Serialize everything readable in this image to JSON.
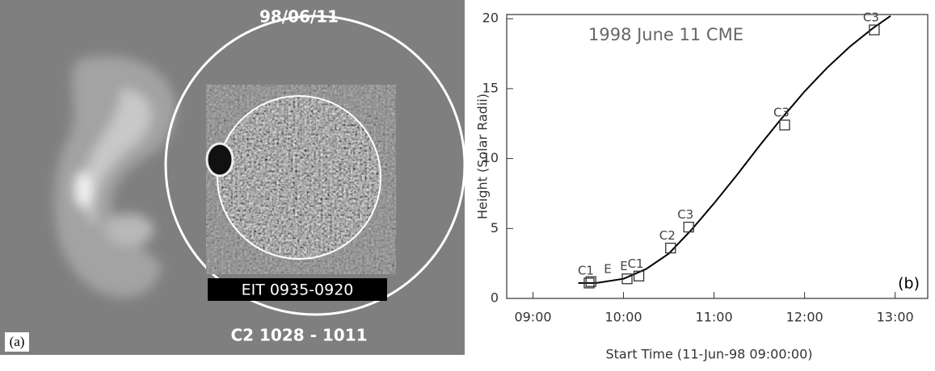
{
  "panel_a": {
    "date": "98/06/11",
    "eit_label": "EIT 0935-0920",
    "c2_label": "C2 1028 - 1011",
    "panel_label": "(a)"
  },
  "chart_data": {
    "type": "scatter",
    "title": "1998 June 11 CME",
    "panel_label": "(b)",
    "x_label": "Start Time (11-Jun-98 09:00:00)",
    "y_label": "Height (Solar Radii)",
    "xlim": [
      8.71,
      13.36
    ],
    "ylim": [
      0,
      20.3
    ],
    "xticks": [
      {
        "value": 9,
        "label": "09:00"
      },
      {
        "value": 10,
        "label": "10:00"
      },
      {
        "value": 11,
        "label": "11:00"
      },
      {
        "value": 12,
        "label": "12:00"
      },
      {
        "value": 13,
        "label": "13:00"
      }
    ],
    "yticks": [
      0,
      5,
      10,
      15,
      20
    ],
    "points": {
      "labels": [
        "C1",
        "E",
        "E",
        "C1",
        "C2",
        "C3",
        "C3",
        "C3"
      ],
      "x": [
        9.62,
        9.64,
        10.04,
        10.17,
        10.52,
        10.72,
        11.78,
        12.77
      ],
      "values": [
        1.1,
        1.2,
        1.4,
        1.6,
        3.6,
        5.1,
        12.4,
        19.2
      ],
      "color": "#333333"
    },
    "curve": {
      "x": [
        9.5,
        9.7,
        10.0,
        10.25,
        10.5,
        10.75,
        11.0,
        11.25,
        11.5,
        11.75,
        12.0,
        12.25,
        12.5,
        12.75,
        12.95
      ],
      "values": [
        1.1,
        1.1,
        1.4,
        2.1,
        3.2,
        4.9,
        6.8,
        8.8,
        10.9,
        12.9,
        14.8,
        16.5,
        18.0,
        19.3,
        20.2
      ],
      "color": "#000000"
    }
  }
}
